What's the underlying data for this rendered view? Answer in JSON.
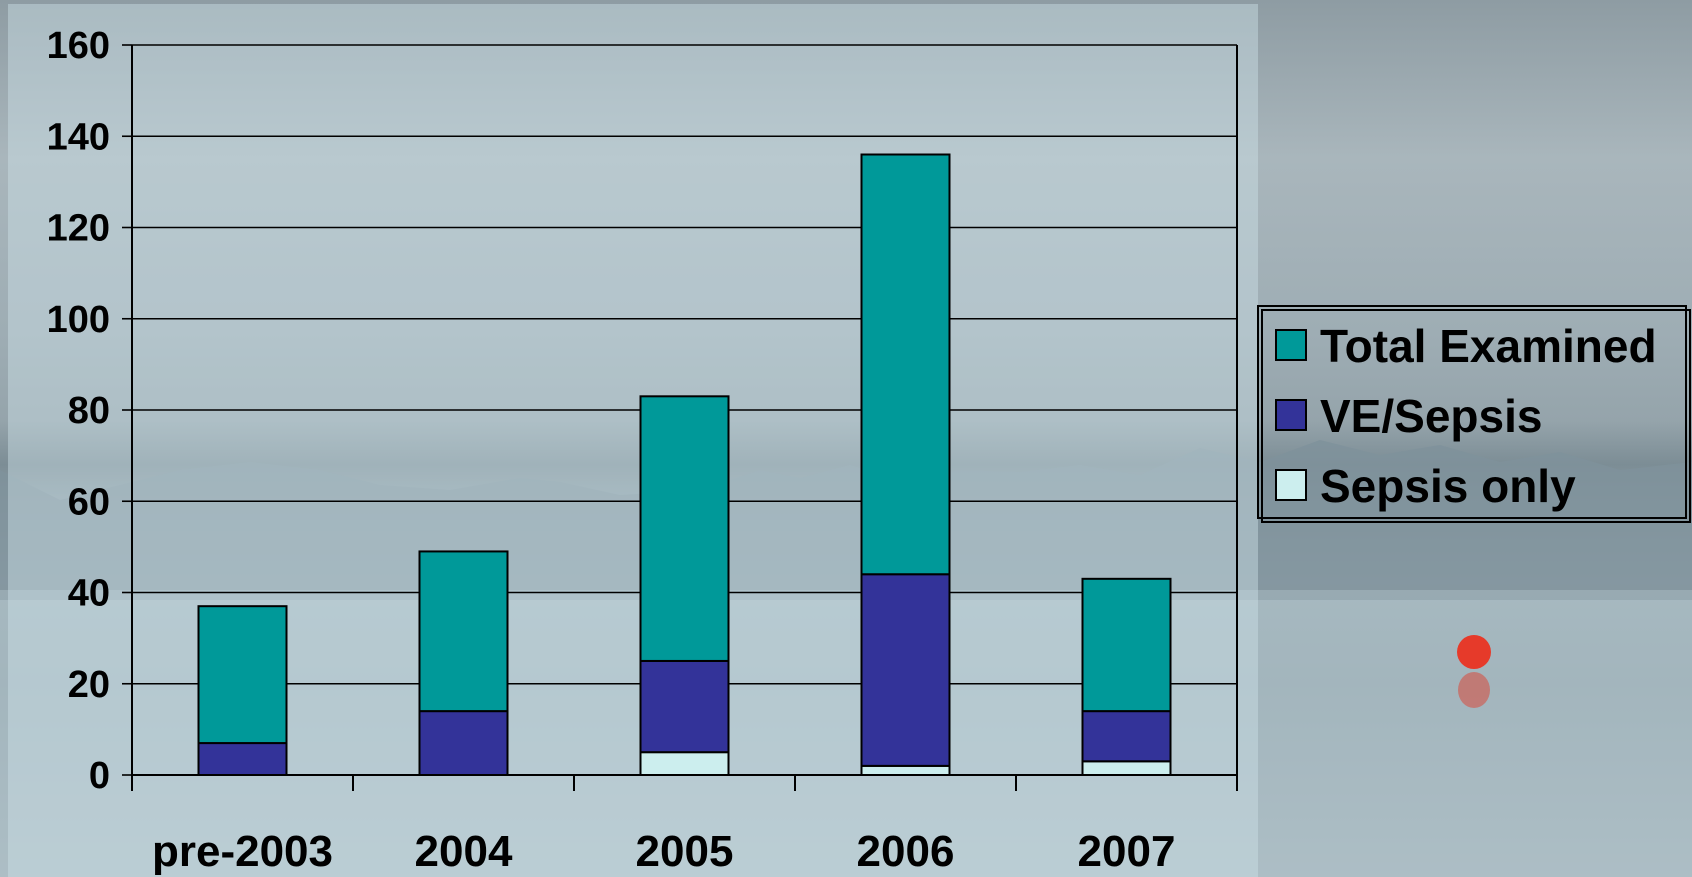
{
  "chart_data": {
    "type": "bar",
    "stacked": true,
    "categories": [
      "pre-2003",
      "2004",
      "2005",
      "2006",
      "2007"
    ],
    "series": [
      {
        "name": "Total Examined",
        "color": "#009999",
        "values": [
          30,
          35,
          58,
          92,
          29
        ]
      },
      {
        "name": "VE/Sepsis",
        "color": "#333399",
        "values": [
          7,
          14,
          20,
          42,
          11
        ]
      },
      {
        "name": "Sepsis only",
        "color": "#cceeee",
        "values": [
          0,
          0,
          5,
          2,
          3
        ]
      }
    ],
    "ylim": [
      0,
      160
    ],
    "yticks": [
      0,
      20,
      40,
      60,
      80,
      100,
      120,
      140,
      160
    ],
    "grid": true,
    "legend_position": "right",
    "title": "",
    "xlabel": "",
    "ylabel": ""
  }
}
